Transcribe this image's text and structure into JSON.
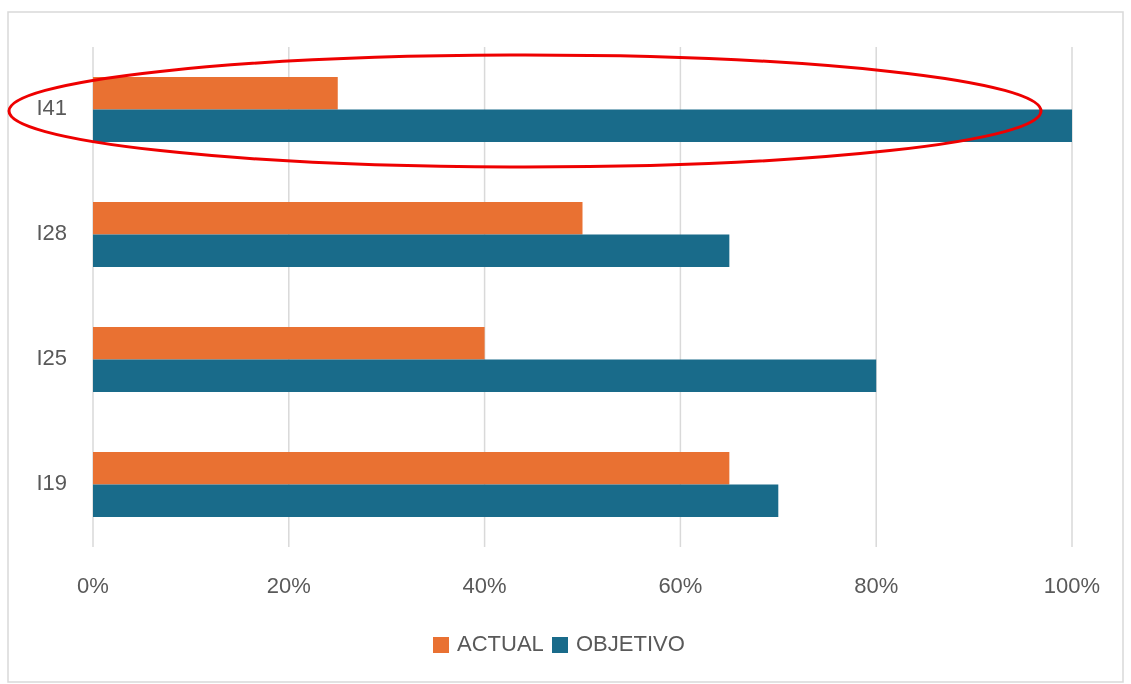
{
  "chart_data": {
    "type": "bar",
    "orientation": "horizontal",
    "categories": [
      "I41",
      "I28",
      "I25",
      "I19"
    ],
    "series": [
      {
        "name": "ACTUAL",
        "color": "#e97132",
        "values": [
          25,
          50,
          40,
          65
        ]
      },
      {
        "name": "OBJETIVO",
        "color": "#196b8a",
        "values": [
          100,
          65,
          80,
          70
        ]
      }
    ],
    "xlim": [
      0,
      100
    ],
    "xticks": [
      {
        "value": 0,
        "label": "0%"
      },
      {
        "value": 20,
        "label": "20%"
      },
      {
        "value": 40,
        "label": "40%"
      },
      {
        "value": 60,
        "label": "60%"
      },
      {
        "value": 80,
        "label": "80%"
      },
      {
        "value": 100,
        "label": "100%"
      }
    ],
    "grid": "x",
    "legend": "bottom"
  }
}
